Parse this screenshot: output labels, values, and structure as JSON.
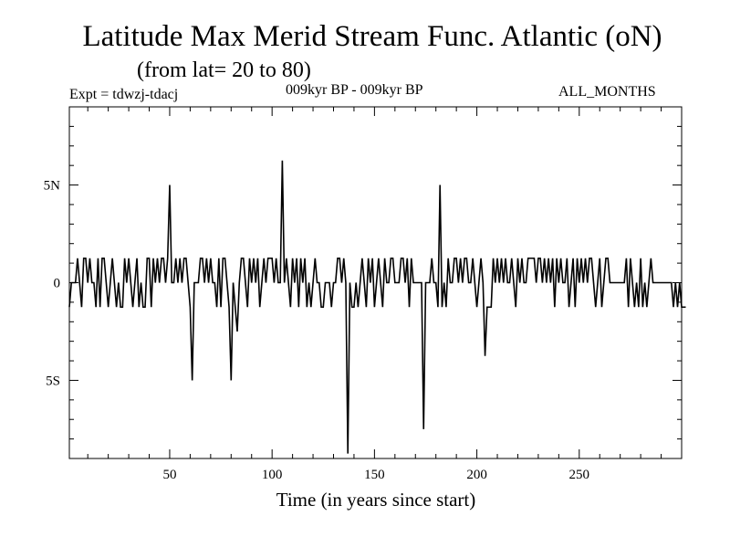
{
  "header": {
    "title": "Latitude Max Merid Stream Func. Atlantic (oN)",
    "subtitle": "(from lat= 20 to 80)",
    "expt": "Expt = tdwzj-tdacj",
    "period": "009kyr BP - 009kyr BP",
    "months": "ALL_MONTHS"
  },
  "chart_data": {
    "type": "line",
    "title": "Latitude Max Merid Stream Func. Atlantic (oN)",
    "xlabel": "Time (in years since start)",
    "ylabel": "",
    "xlim": [
      1,
      300
    ],
    "ylim": [
      -9,
      9
    ],
    "x_ticks": [
      50,
      100,
      150,
      200,
      250
    ],
    "y_ticks": [
      {
        "value": 5,
        "label": "5N"
      },
      {
        "value": 0,
        "label": "0"
      },
      {
        "value": -5,
        "label": "5S"
      }
    ],
    "series": [
      {
        "values": [
          -1.25,
          0,
          0,
          0,
          1.25,
          0,
          -1.25,
          1.25,
          1.25,
          0,
          1.25,
          0,
          0,
          -1.25,
          1.25,
          -1.25,
          1.25,
          1.25,
          0,
          -1.25,
          0,
          1.25,
          0,
          -1.25,
          0,
          -1.25,
          -1.25,
          1.25,
          0,
          1.25,
          0,
          -1.25,
          0,
          1.25,
          -1.25,
          0,
          -1.25,
          -1.25,
          1.25,
          1.25,
          -1.25,
          1.25,
          0,
          1.25,
          0,
          1.25,
          1.25,
          0,
          1.25,
          5,
          0,
          0,
          1.25,
          0,
          1.25,
          0,
          1.25,
          1.25,
          0,
          -1.25,
          -5,
          0,
          0,
          0,
          1.25,
          1.25,
          0,
          1.25,
          0,
          1.25,
          0,
          0,
          -1.25,
          1.25,
          -1.25,
          1.25,
          1.25,
          0,
          -1.25,
          -5,
          0,
          -1.25,
          -2.5,
          0,
          1.25,
          1.25,
          0,
          -1.25,
          1.25,
          0,
          1.25,
          0,
          1.25,
          -1.25,
          0,
          1.25,
          0,
          1.25,
          1.25,
          1.25,
          0,
          1.25,
          0,
          0,
          6.25,
          0,
          1.25,
          0,
          -1.25,
          1.25,
          0,
          1.25,
          -1.25,
          1.25,
          0,
          1.25,
          -1.25,
          0,
          -1.25,
          0,
          1.25,
          0,
          0,
          -1.25,
          -1.25,
          0,
          0,
          0,
          -1.25,
          0,
          0,
          1.25,
          1.25,
          0,
          1.25,
          0,
          -8.75,
          0,
          -1.25,
          -1.25,
          0,
          -1.25,
          0,
          1.25,
          0,
          -1.25,
          1.25,
          0,
          1.25,
          -1.25,
          0,
          1.25,
          0,
          -1.25,
          1.25,
          0,
          0,
          1.25,
          1.25,
          0,
          0,
          0,
          1.25,
          1.25,
          0,
          1.25,
          -1.25,
          1.25,
          0,
          0,
          0,
          0,
          0,
          -7.5,
          0,
          0,
          0,
          1.25,
          0,
          0,
          -1.25,
          5,
          -1.25,
          0,
          -1.25,
          1.25,
          0,
          0,
          1.25,
          1.25,
          0,
          1.25,
          0,
          1.25,
          1.25,
          0,
          0,
          1.25,
          0,
          -1.25,
          0,
          1.25,
          0,
          -3.75,
          -1.25,
          -1.25,
          -1.25,
          1.25,
          0,
          1.25,
          0,
          1.25,
          0,
          1.25,
          0,
          0,
          1.25,
          0,
          -1.25,
          1.25,
          0,
          1.25,
          0,
          0,
          1.25,
          1.25,
          1.25,
          1.25,
          0,
          1.25,
          1.25,
          0,
          1.25,
          0,
          1.25,
          0,
          1.25,
          -1.25,
          1.25,
          0,
          1.25,
          0,
          0,
          1.25,
          -1.25,
          0,
          1.25,
          -1.25,
          1.25,
          0,
          1.25,
          0,
          1.25,
          0,
          1.25,
          1.25,
          0,
          -1.25,
          0,
          1.25,
          -1.25,
          0,
          1.25,
          1.25,
          0,
          0,
          0,
          0,
          0,
          0,
          0,
          0,
          1.25,
          -1.25,
          1.25,
          0,
          -1.25,
          0,
          -1.25,
          1.25,
          -1.25,
          0,
          -1.25,
          0,
          1.25,
          0,
          0,
          0,
          0,
          0,
          0,
          0,
          0,
          0,
          0,
          -1.25,
          0,
          -1.25,
          0,
          -1.25,
          -1.25,
          -1.25
        ]
      }
    ]
  }
}
